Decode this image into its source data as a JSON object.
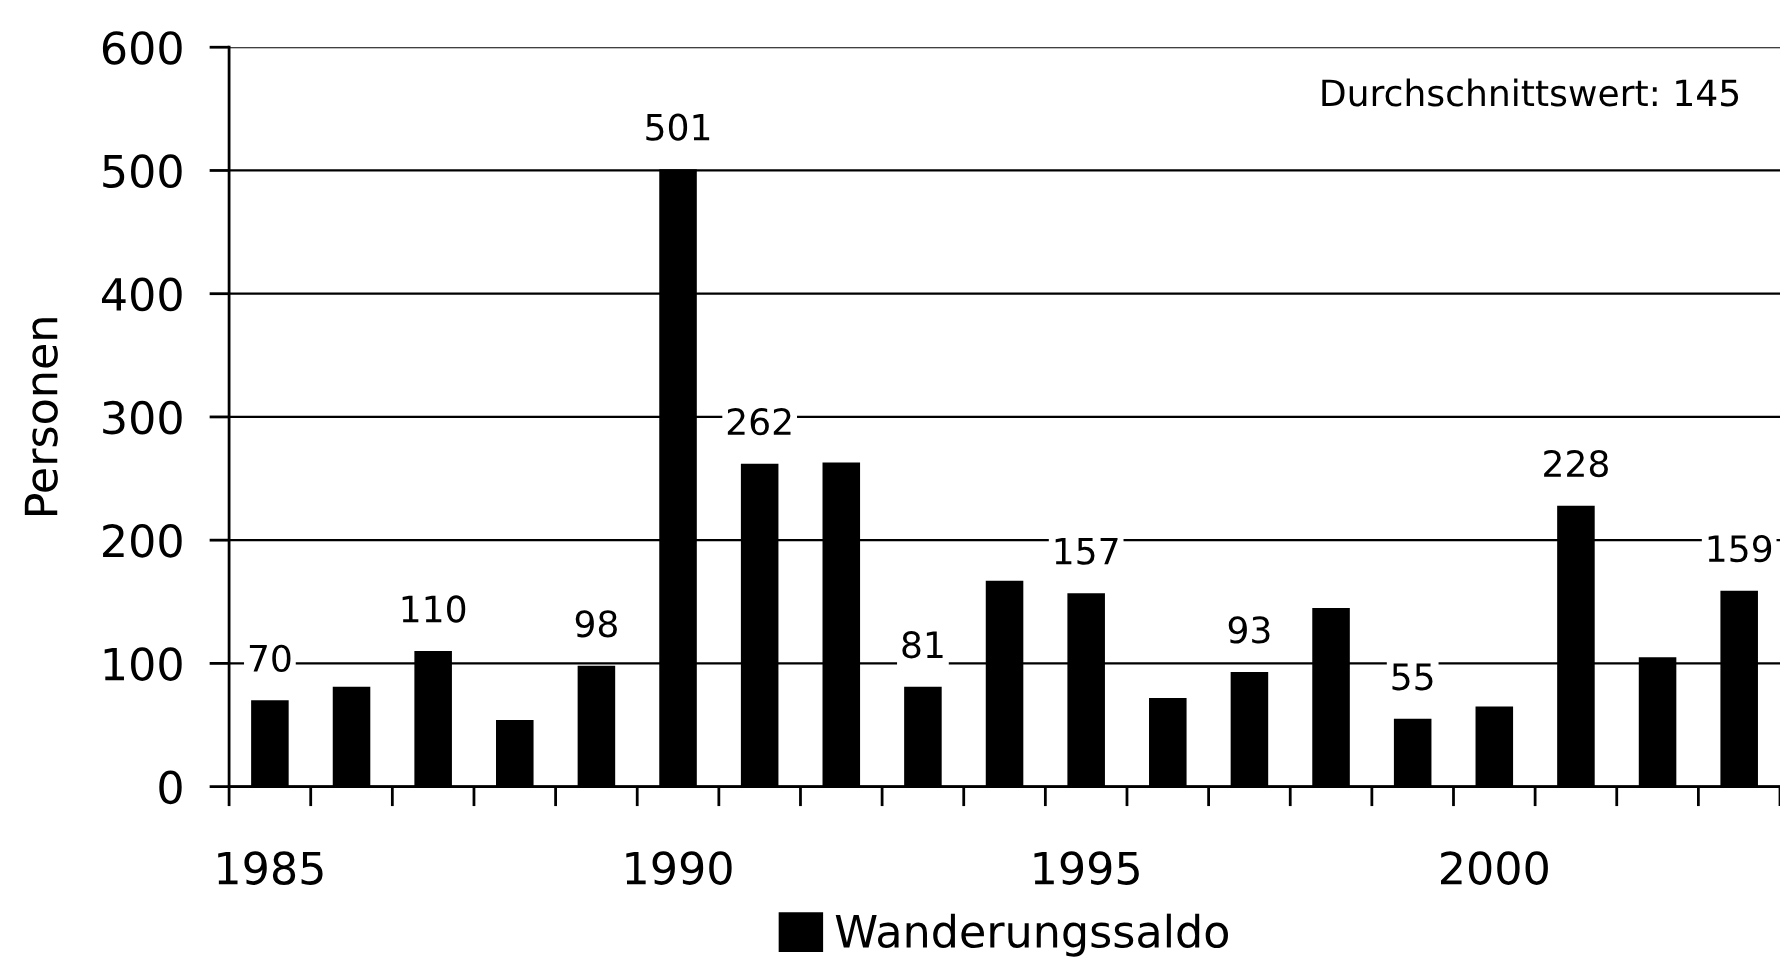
{
  "chart_data": {
    "type": "bar",
    "ylabel": "Personen",
    "categories": [
      "1985",
      null,
      null,
      null,
      null,
      "1990",
      null,
      null,
      null,
      null,
      "1995",
      null,
      null,
      null,
      null,
      "2000",
      null,
      null,
      null
    ],
    "series": [
      {
        "name": "Wanderungssaldo",
        "color": "#000000",
        "values": [
          70,
          81,
          110,
          54,
          98,
          501,
          262,
          263,
          81,
          167,
          157,
          72,
          93,
          145,
          55,
          65,
          228,
          105,
          159
        ],
        "value_labels": [
          "70",
          null,
          "110",
          null,
          "98",
          "501",
          "262",
          null,
          "81",
          null,
          "157",
          null,
          "93",
          null,
          "55",
          null,
          "228",
          null,
          "159"
        ]
      }
    ],
    "ylim": [
      0,
      600
    ],
    "yticks": [
      0,
      100,
      200,
      300,
      400,
      500,
      600
    ],
    "grid": "y",
    "legend": "bottom",
    "annotations": [
      "Durchschnittswert: 145"
    ]
  }
}
